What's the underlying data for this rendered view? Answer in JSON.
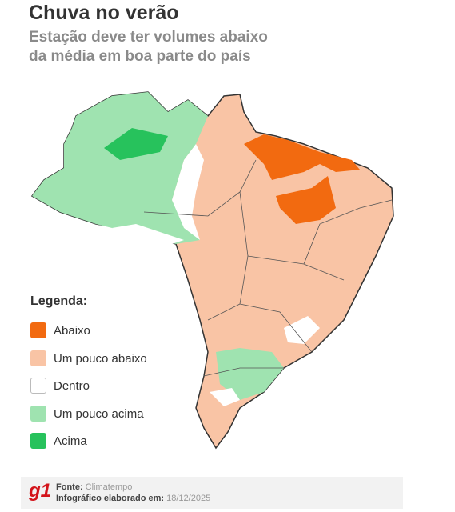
{
  "header": {
    "title": "Chuva no verão",
    "subtitle_lines": [
      "Estação deve ter volumes abaixo",
      "da média em boa parte do país"
    ]
  },
  "legend": {
    "title": "Legenda:",
    "items": [
      "Abaixo",
      "Um pouco abaixo",
      "Dentro",
      "Um pouco acima",
      "Acima"
    ]
  },
  "footer": {
    "logo": "g1",
    "source_label": "Fonte:",
    "source": "Climatempo",
    "date_label": "Infográfico elaborado em:",
    "date": "18/12/2025"
  }
}
